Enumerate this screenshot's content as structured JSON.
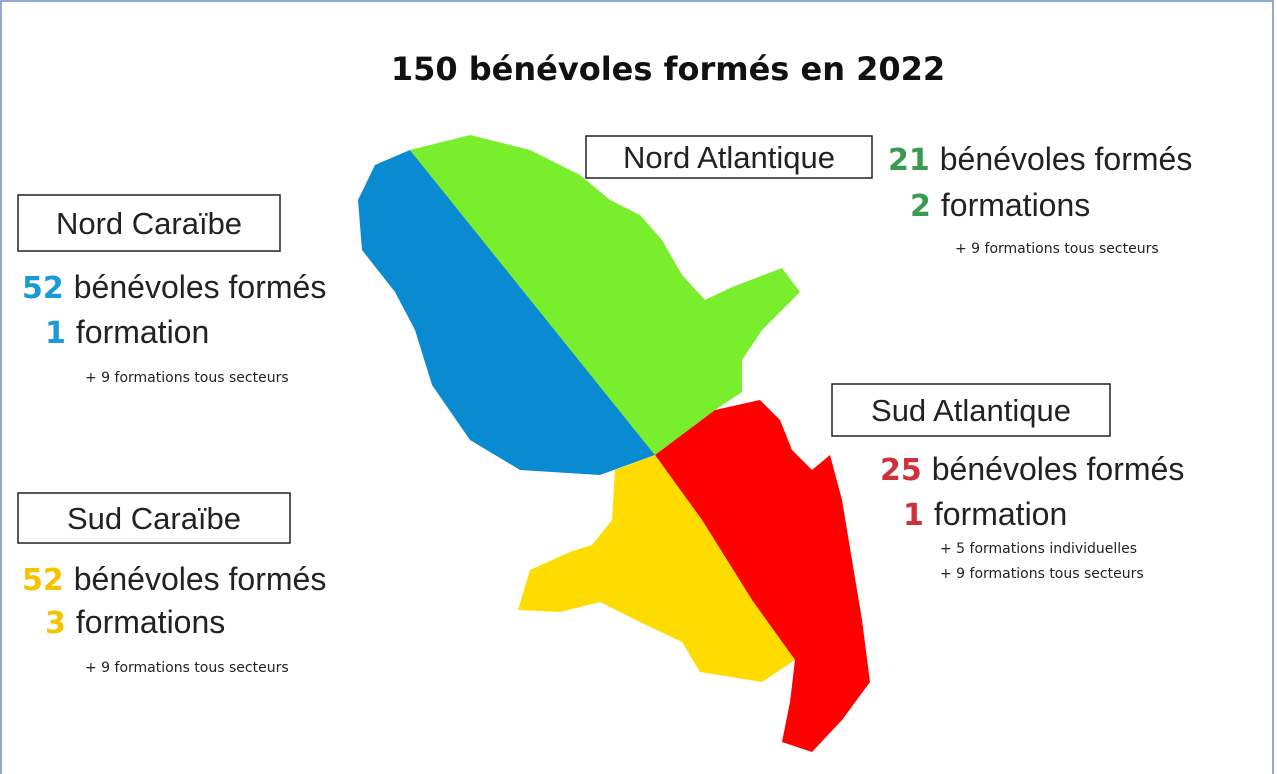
{
  "title": "150 bénévoles formés en 2022",
  "regions": [
    {
      "name": "Nord Caraïbe",
      "volunteers": 52,
      "volunteers_label": "bénévoles formés",
      "formations": 1,
      "formations_label": "formation",
      "notes": [
        "+ 9 formations tous secteurs"
      ]
    },
    {
      "name": "Nord Atlantique",
      "volunteers": 21,
      "volunteers_label": "bénévoles formés",
      "formations": 2,
      "formations_label": "formations",
      "notes": [
        "+ 9 formations tous secteurs"
      ]
    },
    {
      "name": "Sud Atlantique",
      "volunteers": 25,
      "volunteers_label": "bénévoles formés",
      "formations": 1,
      "formations_label": "formation",
      "notes": [
        "+ 5 formations individuelles",
        "+ 9 formations tous secteurs"
      ]
    },
    {
      "name": "Sud Caraïbe",
      "volunteers": 52,
      "volunteers_label": "bénévoles formés",
      "formations": 3,
      "formations_label": "formations",
      "notes": [
        "+ 9 formations tous secteurs"
      ]
    }
  ]
}
